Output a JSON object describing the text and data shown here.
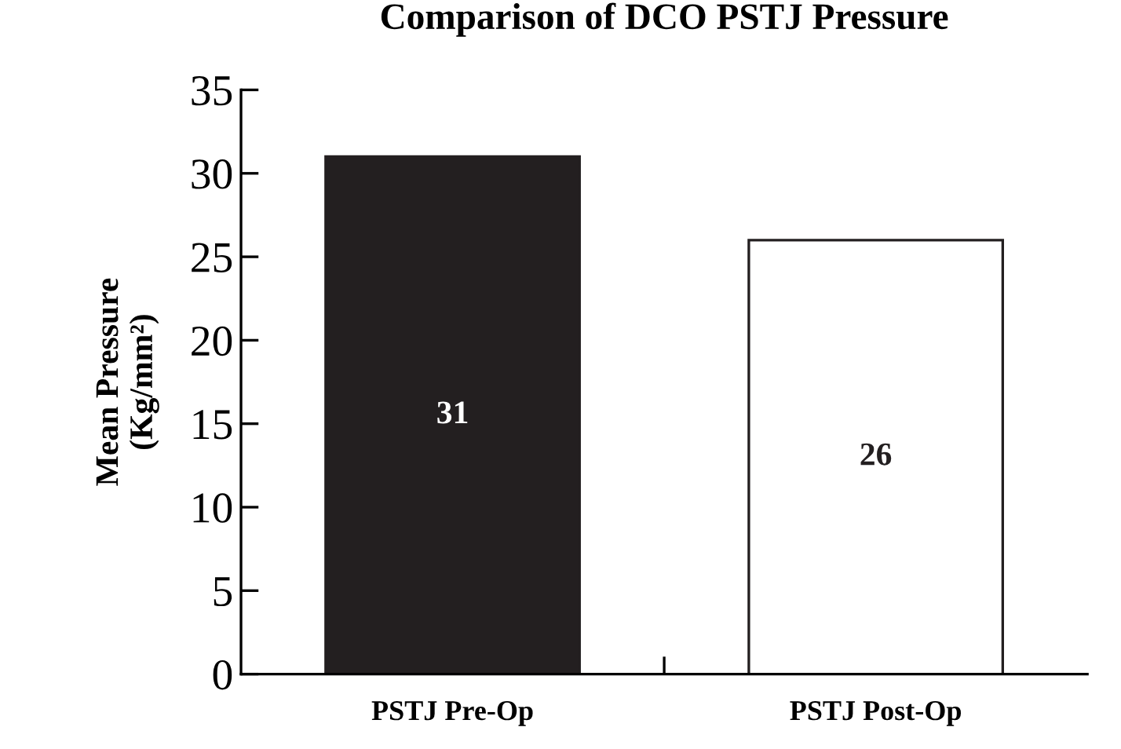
{
  "chart_data": {
    "type": "bar",
    "title": "Comparison of DCO PSTJ Pressure",
    "ylabel": "Mean Pressure\n(Kg/mm²)",
    "categories": [
      "PSTJ Pre-Op",
      "PSTJ Post-Op"
    ],
    "values": [
      31,
      26
    ],
    "colors": [
      "#231f20",
      "#ffffff"
    ],
    "ylim": [
      0,
      35
    ],
    "yticks": [
      0,
      5,
      10,
      15,
      20,
      25,
      30,
      35
    ],
    "data_labels": true,
    "grid": false,
    "legend": false
  }
}
